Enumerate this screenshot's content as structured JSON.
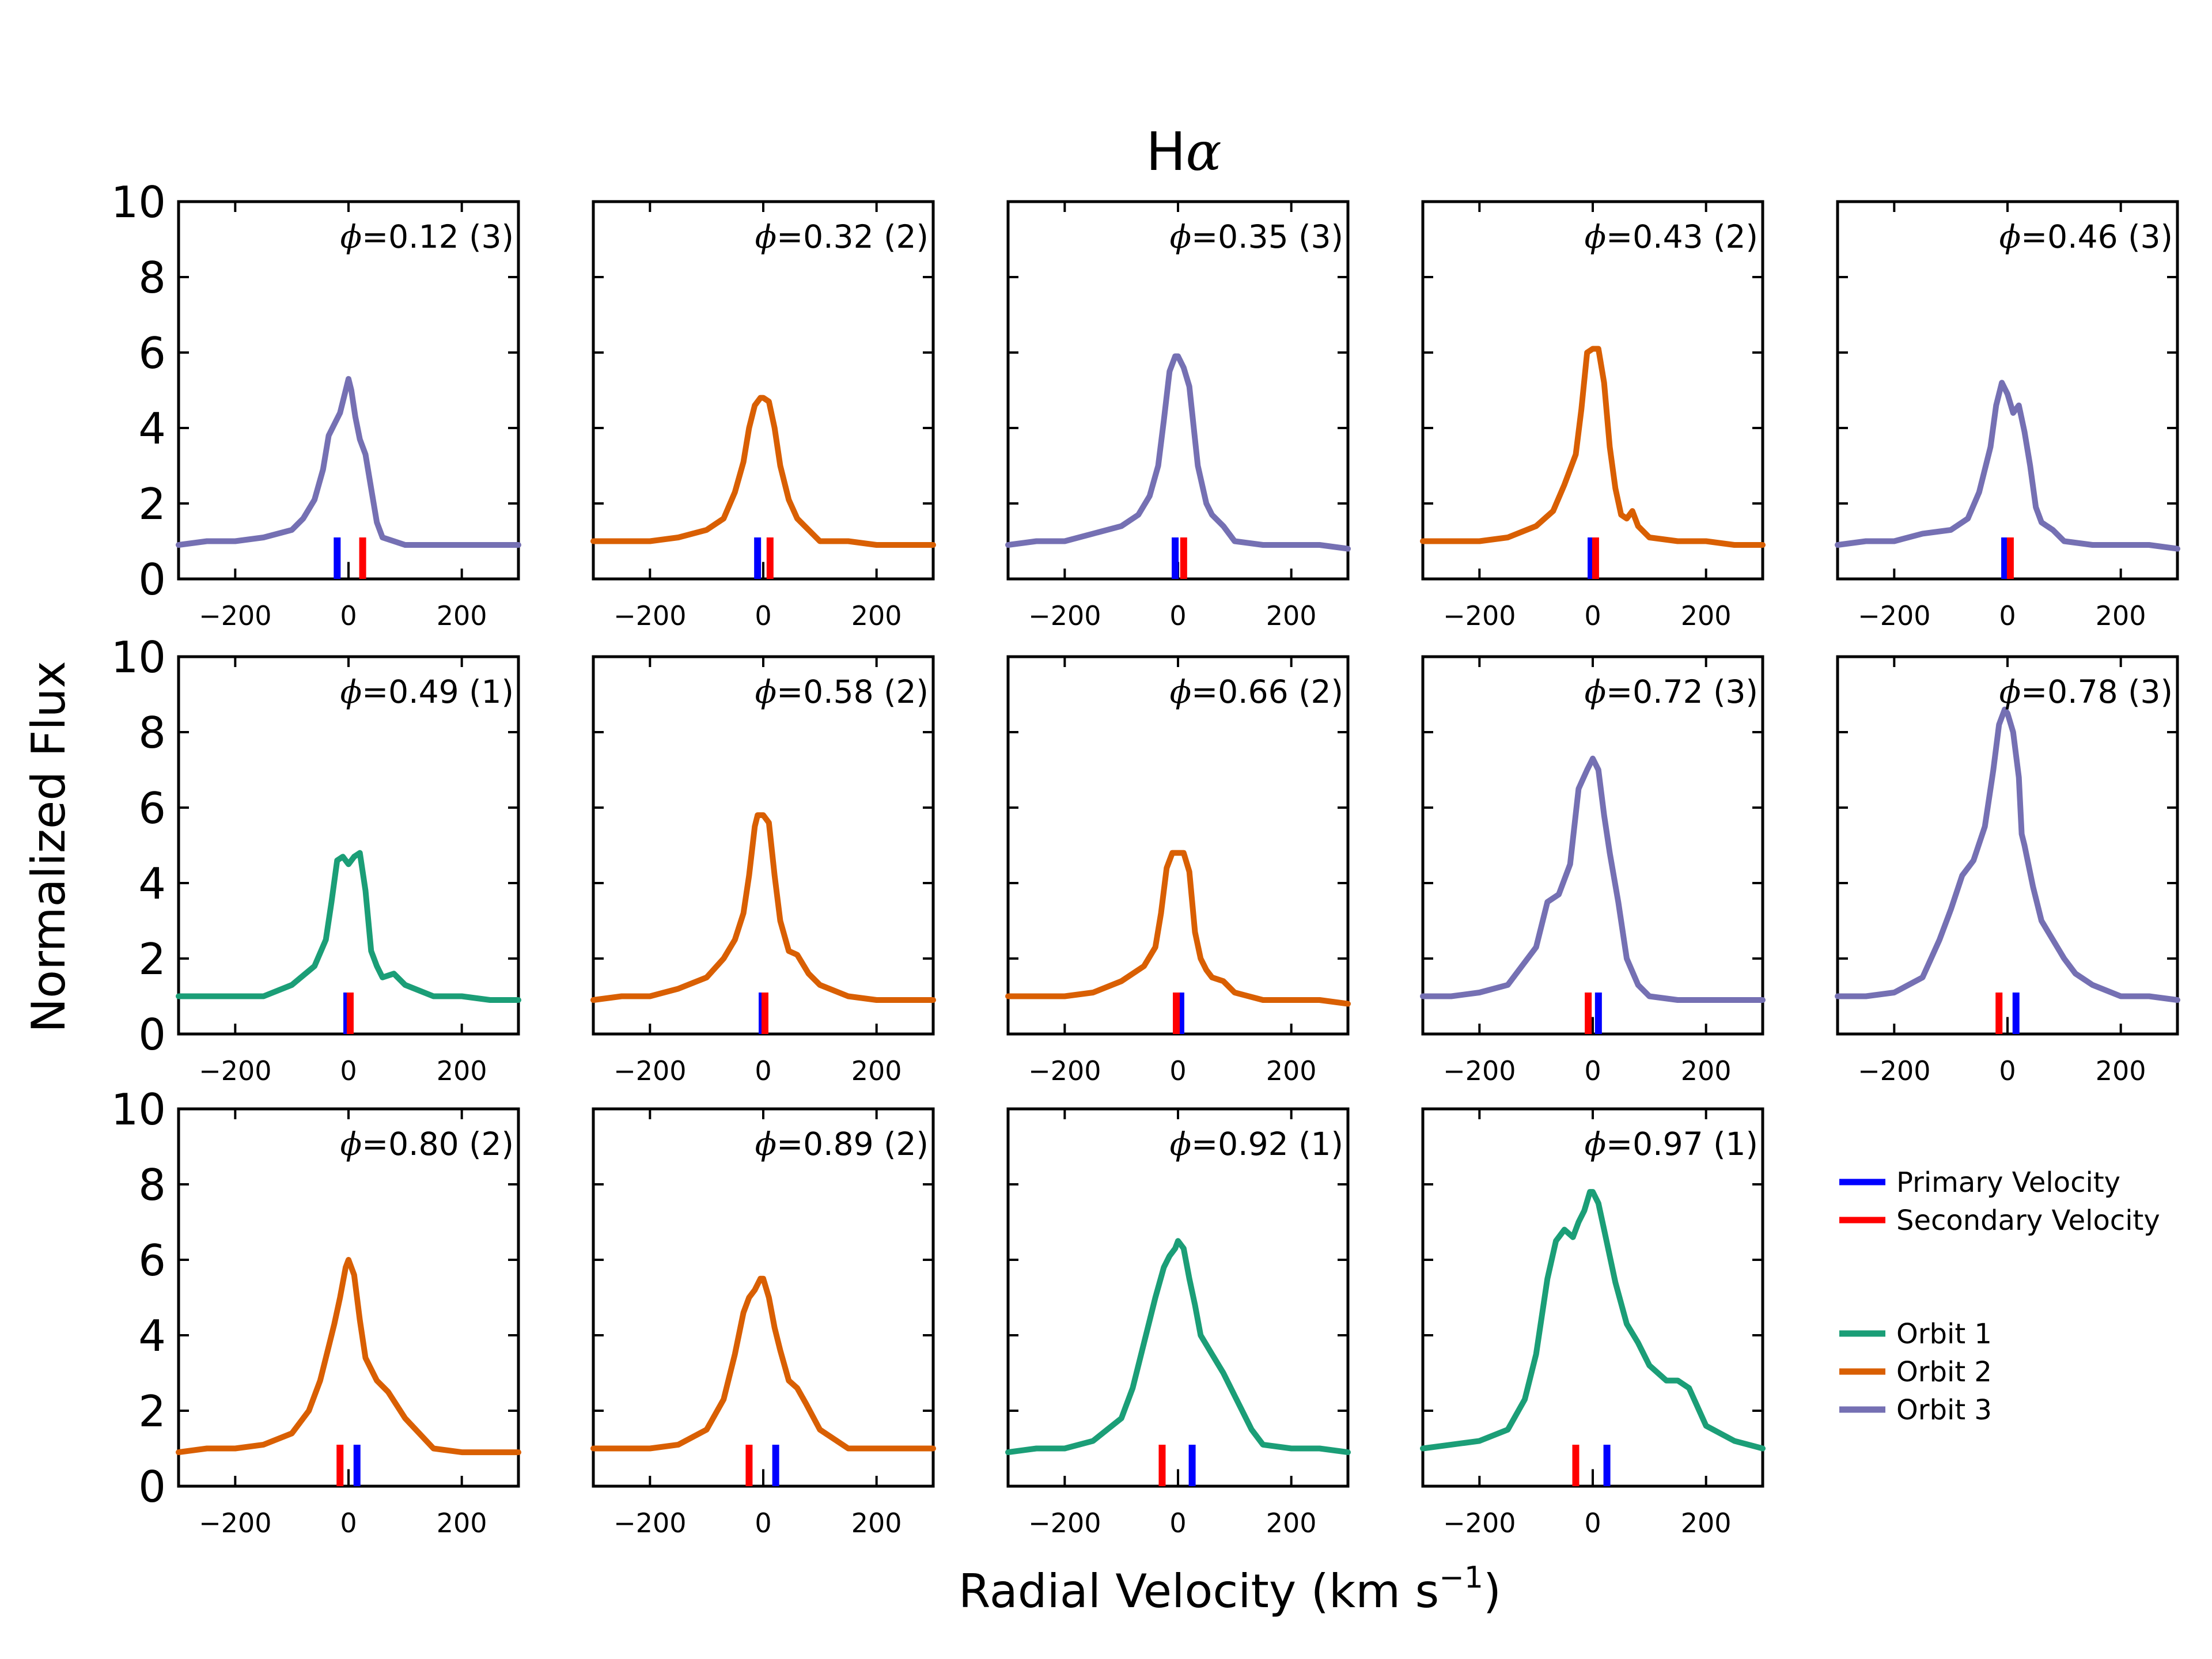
{
  "chart_data": {
    "type": "line",
    "title": "Hα",
    "title_main": "H",
    "title_symbol": "α",
    "xlabel": "Radial Velocity (km s",
    "xlabel_sup": "−1",
    "xlabel_end": ")",
    "ylabel": "Normalized Flux",
    "xlim": [
      -300,
      300
    ],
    "ylim": [
      0,
      10
    ],
    "xticks": [
      -200,
      0,
      200
    ],
    "xtick_labels": [
      "−200",
      "0",
      "200"
    ],
    "yticks": [
      0,
      2,
      4,
      6,
      8,
      10
    ],
    "ytick_labels": [
      "0",
      "2",
      "4",
      "6",
      "8",
      "10"
    ],
    "grid": false,
    "orbit_colors": {
      "1": "#1b9e77",
      "2": "#d95f02",
      "3": "#7570b3"
    },
    "primary_color": "#0000ff",
    "secondary_color": "#ff0000",
    "legend": {
      "placement": "right",
      "velocity_items": [
        {
          "label": "Primary Velocity",
          "color": "#0000ff"
        },
        {
          "label": "Secondary Velocity",
          "color": "#ff0000"
        }
      ],
      "orbit_items": [
        {
          "label": "Orbit 1",
          "color": "#1b9e77"
        },
        {
          "label": "Orbit 2",
          "color": "#d95f02"
        },
        {
          "label": "Orbit 3",
          "color": "#7570b3"
        }
      ]
    },
    "panels": [
      {
        "phase": "0.12",
        "orbit": 3,
        "label": "=0.12 (3)",
        "primary_v": -20,
        "secondary_v": 25,
        "x": [
          -300,
          -250,
          -200,
          -150,
          -100,
          -80,
          -60,
          -45,
          -35,
          -25,
          -15,
          -5,
          0,
          5,
          12,
          20,
          30,
          40,
          50,
          60,
          80,
          100,
          150,
          200,
          250,
          300
        ],
        "y": [
          0.9,
          1.0,
          1.0,
          1.1,
          1.3,
          1.6,
          2.1,
          2.9,
          3.8,
          4.1,
          4.4,
          5.0,
          5.3,
          5.0,
          4.3,
          3.7,
          3.3,
          2.4,
          1.5,
          1.1,
          1.0,
          0.9,
          0.9,
          0.9,
          0.9,
          0.9
        ]
      },
      {
        "phase": "0.32",
        "orbit": 2,
        "label": "=0.32 (2)",
        "primary_v": -10,
        "secondary_v": 12,
        "x": [
          -300,
          -250,
          -200,
          -150,
          -100,
          -70,
          -50,
          -35,
          -25,
          -15,
          -5,
          0,
          10,
          20,
          30,
          45,
          60,
          80,
          100,
          150,
          200,
          250,
          300
        ],
        "y": [
          1.0,
          1.0,
          1.0,
          1.1,
          1.3,
          1.6,
          2.3,
          3.1,
          4.0,
          4.6,
          4.8,
          4.8,
          4.7,
          4.0,
          3.0,
          2.1,
          1.6,
          1.3,
          1.0,
          1.0,
          0.9,
          0.9,
          0.9
        ]
      },
      {
        "phase": "0.35",
        "orbit": 3,
        "label": "=0.35 (3)",
        "primary_v": -5,
        "secondary_v": 10,
        "x": [
          -300,
          -250,
          -200,
          -150,
          -100,
          -70,
          -50,
          -35,
          -25,
          -15,
          -5,
          0,
          10,
          20,
          25,
          35,
          50,
          60,
          80,
          100,
          150,
          200,
          250,
          300
        ],
        "y": [
          0.9,
          1.0,
          1.0,
          1.2,
          1.4,
          1.7,
          2.2,
          3.0,
          4.2,
          5.5,
          5.9,
          5.9,
          5.6,
          5.1,
          4.4,
          3.0,
          2.0,
          1.7,
          1.4,
          1.0,
          0.9,
          0.9,
          0.9,
          0.8
        ]
      },
      {
        "phase": "0.43",
        "orbit": 2,
        "label": "=0.43 (2)",
        "primary_v": -3,
        "secondary_v": 5,
        "x": [
          -300,
          -250,
          -200,
          -150,
          -100,
          -70,
          -50,
          -30,
          -20,
          -10,
          0,
          10,
          20,
          30,
          40,
          50,
          60,
          70,
          80,
          100,
          150,
          200,
          250,
          300
        ],
        "y": [
          1.0,
          1.0,
          1.0,
          1.1,
          1.4,
          1.8,
          2.5,
          3.3,
          4.5,
          6.0,
          6.1,
          6.1,
          5.2,
          3.5,
          2.4,
          1.7,
          1.6,
          1.8,
          1.4,
          1.1,
          1.0,
          1.0,
          0.9,
          0.9
        ]
      },
      {
        "phase": "0.46",
        "orbit": 3,
        "label": "=0.46 (3)",
        "primary_v": -5,
        "secondary_v": 5,
        "x": [
          -300,
          -250,
          -200,
          -150,
          -100,
          -70,
          -50,
          -30,
          -20,
          -10,
          0,
          10,
          20,
          30,
          40,
          50,
          60,
          80,
          100,
          150,
          200,
          250,
          300
        ],
        "y": [
          0.9,
          1.0,
          1.0,
          1.2,
          1.3,
          1.6,
          2.3,
          3.5,
          4.6,
          5.2,
          4.9,
          4.4,
          4.6,
          3.9,
          3.0,
          1.9,
          1.5,
          1.3,
          1.0,
          0.9,
          0.9,
          0.9,
          0.8
        ]
      },
      {
        "phase": "0.49",
        "orbit": 1,
        "label": "=0.49 (1)",
        "primary_v": -3,
        "secondary_v": 3,
        "x": [
          -300,
          -250,
          -200,
          -150,
          -100,
          -60,
          -40,
          -30,
          -20,
          -10,
          0,
          10,
          20,
          30,
          40,
          50,
          60,
          80,
          100,
          150,
          200,
          250,
          300
        ],
        "y": [
          1.0,
          1.0,
          1.0,
          1.0,
          1.3,
          1.8,
          2.5,
          3.5,
          4.6,
          4.7,
          4.5,
          4.7,
          4.8,
          3.8,
          2.2,
          1.8,
          1.5,
          1.6,
          1.3,
          1.0,
          1.0,
          0.9,
          0.9
        ]
      },
      {
        "phase": "0.58",
        "orbit": 2,
        "label": "=0.58 (2)",
        "primary_v": -2,
        "secondary_v": 3,
        "x": [
          -300,
          -250,
          -200,
          -150,
          -100,
          -70,
          -50,
          -35,
          -25,
          -15,
          -10,
          0,
          10,
          20,
          30,
          45,
          60,
          80,
          100,
          150,
          200,
          250,
          300
        ],
        "y": [
          0.9,
          1.0,
          1.0,
          1.2,
          1.5,
          2.0,
          2.5,
          3.2,
          4.2,
          5.5,
          5.8,
          5.8,
          5.6,
          4.2,
          3.0,
          2.2,
          2.1,
          1.6,
          1.3,
          1.0,
          0.9,
          0.9,
          0.9
        ]
      },
      {
        "phase": "0.66",
        "orbit": 2,
        "label": "=0.66 (2)",
        "primary_v": 5,
        "secondary_v": -3,
        "x": [
          -300,
          -250,
          -200,
          -150,
          -100,
          -60,
          -40,
          -30,
          -20,
          -10,
          0,
          10,
          20,
          30,
          40,
          50,
          60,
          80,
          100,
          150,
          200,
          250,
          300
        ],
        "y": [
          1.0,
          1.0,
          1.0,
          1.1,
          1.4,
          1.8,
          2.3,
          3.2,
          4.4,
          4.8,
          4.8,
          4.8,
          4.3,
          2.7,
          2.0,
          1.7,
          1.5,
          1.4,
          1.1,
          0.9,
          0.9,
          0.9,
          0.8
        ]
      },
      {
        "phase": "0.72",
        "orbit": 3,
        "label": "=0.72 (3)",
        "primary_v": 10,
        "secondary_v": -8,
        "x": [
          -300,
          -250,
          -200,
          -150,
          -100,
          -80,
          -60,
          -40,
          -25,
          -10,
          0,
          10,
          20,
          30,
          45,
          60,
          80,
          100,
          150,
          200,
          250,
          300
        ],
        "y": [
          1.0,
          1.0,
          1.1,
          1.3,
          2.3,
          3.5,
          3.7,
          4.5,
          6.5,
          7.0,
          7.3,
          7.0,
          5.8,
          4.8,
          3.5,
          2.0,
          1.3,
          1.0,
          0.9,
          0.9,
          0.9,
          0.9
        ]
      },
      {
        "phase": "0.78",
        "orbit": 3,
        "label": "=0.78 (3)",
        "primary_v": 15,
        "secondary_v": -15,
        "x": [
          -300,
          -250,
          -200,
          -150,
          -120,
          -100,
          -80,
          -60,
          -40,
          -25,
          -15,
          -5,
          0,
          10,
          20,
          25,
          30,
          45,
          60,
          80,
          100,
          120,
          150,
          200,
          250,
          300
        ],
        "y": [
          1.0,
          1.0,
          1.1,
          1.5,
          2.5,
          3.3,
          4.2,
          4.6,
          5.5,
          7.0,
          8.2,
          8.6,
          8.5,
          8.0,
          6.8,
          5.3,
          5.0,
          3.9,
          3.0,
          2.5,
          2.0,
          1.6,
          1.3,
          1.0,
          1.0,
          0.9
        ]
      },
      {
        "phase": "0.80",
        "orbit": 2,
        "label": "=0.80 (2)",
        "primary_v": 15,
        "secondary_v": -15,
        "x": [
          -300,
          -250,
          -200,
          -150,
          -100,
          -70,
          -50,
          -35,
          -25,
          -15,
          -5,
          0,
          10,
          20,
          30,
          50,
          70,
          100,
          150,
          200,
          250,
          300
        ],
        "y": [
          0.9,
          1.0,
          1.0,
          1.1,
          1.4,
          2.0,
          2.8,
          3.7,
          4.3,
          5.0,
          5.8,
          6.0,
          5.6,
          4.4,
          3.4,
          2.8,
          2.5,
          1.8,
          1.0,
          0.9,
          0.9,
          0.9
        ]
      },
      {
        "phase": "0.89",
        "orbit": 2,
        "label": "=0.89 (2)",
        "primary_v": 22,
        "secondary_v": -25,
        "x": [
          -300,
          -250,
          -200,
          -150,
          -100,
          -70,
          -50,
          -35,
          -25,
          -15,
          -5,
          0,
          10,
          20,
          30,
          45,
          60,
          75,
          100,
          150,
          200,
          250,
          300
        ],
        "y": [
          1.0,
          1.0,
          1.0,
          1.1,
          1.5,
          2.3,
          3.5,
          4.6,
          5.0,
          5.2,
          5.5,
          5.5,
          5.0,
          4.2,
          3.6,
          2.8,
          2.6,
          2.2,
          1.5,
          1.0,
          1.0,
          1.0,
          1.0
        ]
      },
      {
        "phase": "0.92",
        "orbit": 1,
        "label": "=0.92 (1)",
        "primary_v": 25,
        "secondary_v": -28,
        "x": [
          -300,
          -250,
          -200,
          -150,
          -100,
          -80,
          -60,
          -40,
          -25,
          -15,
          -5,
          0,
          10,
          20,
          30,
          40,
          60,
          80,
          100,
          130,
          150,
          200,
          250,
          300
        ],
        "y": [
          0.9,
          1.0,
          1.0,
          1.2,
          1.8,
          2.6,
          3.8,
          5.0,
          5.8,
          6.1,
          6.3,
          6.5,
          6.3,
          5.5,
          4.8,
          4.0,
          3.5,
          3.0,
          2.4,
          1.5,
          1.1,
          1.0,
          1.0,
          0.9
        ]
      },
      {
        "phase": "0.97",
        "orbit": 1,
        "label": "=0.97 (1)",
        "primary_v": 25,
        "secondary_v": -30,
        "x": [
          -300,
          -250,
          -200,
          -150,
          -120,
          -100,
          -80,
          -65,
          -50,
          -35,
          -25,
          -15,
          -5,
          0,
          10,
          20,
          30,
          40,
          60,
          80,
          100,
          130,
          150,
          170,
          200,
          250,
          300
        ],
        "y": [
          1.0,
          1.1,
          1.2,
          1.5,
          2.3,
          3.5,
          5.5,
          6.5,
          6.8,
          6.6,
          7.0,
          7.3,
          7.8,
          7.8,
          7.5,
          6.8,
          6.1,
          5.4,
          4.3,
          3.8,
          3.2,
          2.8,
          2.8,
          2.6,
          1.6,
          1.2,
          1.0
        ]
      }
    ]
  }
}
